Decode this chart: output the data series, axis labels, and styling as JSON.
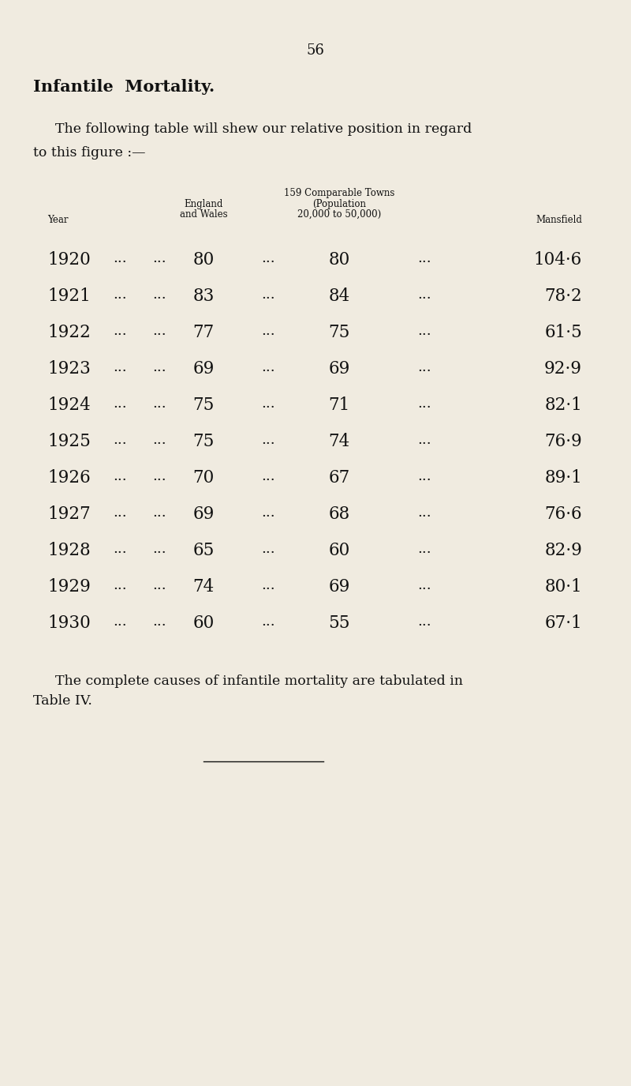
{
  "page_number": "56",
  "background_color": "#f0ebe0",
  "title": "Infantile  Mortality.",
  "intro_line1": "The following table will shew our relative position in regard",
  "intro_line2": "to this figure :—",
  "col_year": "Year",
  "col_england_line1": "England",
  "col_england_line2": "and Wales",
  "col_comp_line1": "159 Comparable Towns",
  "col_comp_line2": "(Population",
  "col_comp_line3": "20,000 to 50,000)",
  "col_mansfield": "Mansfield",
  "years": [
    "1920",
    "1921",
    "1922",
    "1923",
    "1924",
    "1925",
    "1926",
    "1927",
    "1928",
    "1929",
    "1930"
  ],
  "england_wales": [
    "80",
    "83",
    "77",
    "69",
    "75",
    "75",
    "70",
    "69",
    "65",
    "74",
    "60"
  ],
  "comparable": [
    "80",
    "84",
    "75",
    "69",
    "71",
    "74",
    "67",
    "68",
    "60",
    "69",
    "55"
  ],
  "mansfield": [
    "104·6",
    "78·2",
    "61·5",
    "92·9",
    "82·1",
    "76·9",
    "89·1",
    "76·6",
    "82·9",
    "80·1",
    "67·1"
  ],
  "footer_line1": "The complete causes of infantile mortality are tabulated in",
  "footer_line2": "Table IV.",
  "dots": "...",
  "text_color": "#111111"
}
